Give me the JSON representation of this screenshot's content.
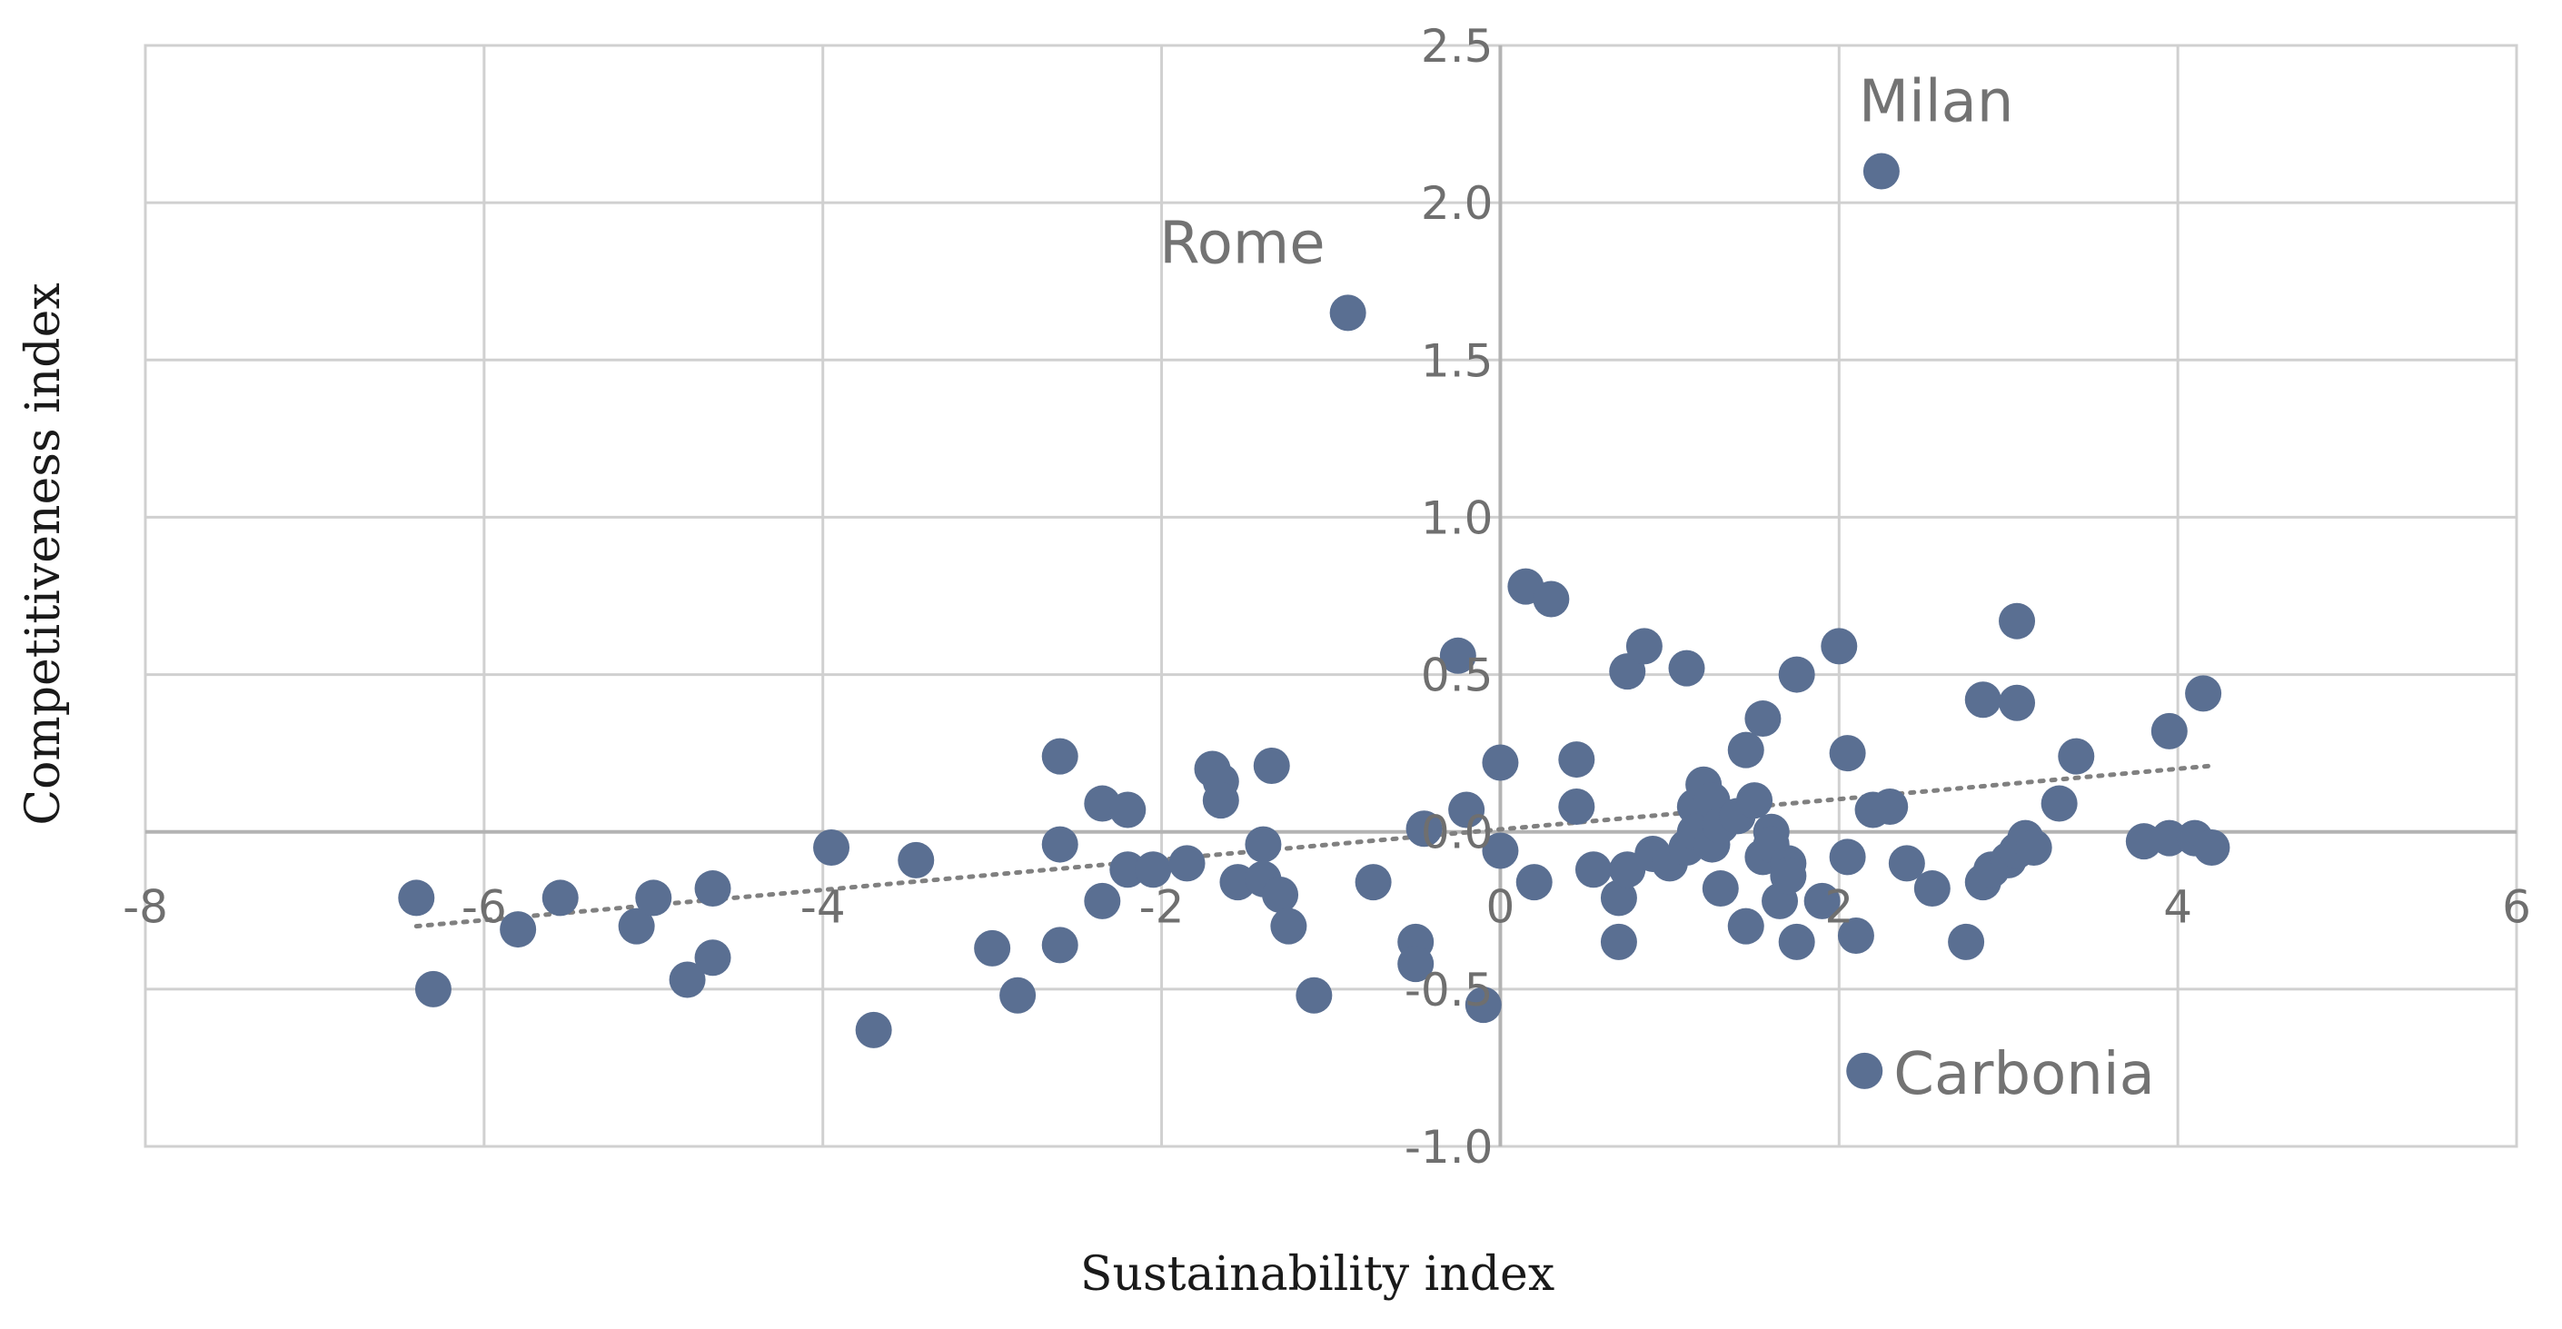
{
  "chart_data": {
    "type": "scatter",
    "xlabel": "Sustainability index",
    "ylabel": "Competitiveness index",
    "xlim": [
      -8,
      6
    ],
    "ylim": [
      -1.0,
      2.5
    ],
    "x_ticks": [
      -8,
      -6,
      -4,
      -2,
      0,
      2,
      4,
      6
    ],
    "x_tick_labels": [
      "-8",
      "-6",
      "-4",
      "-2",
      "0",
      "2",
      "4",
      "6"
    ],
    "y_ticks": [
      -1.0,
      -0.5,
      0.0,
      0.5,
      1.0,
      1.5,
      2.0,
      2.5
    ],
    "y_tick_labels": [
      "-1.0",
      "-0.5",
      "0.0",
      "0.5",
      "1.0",
      "1.5",
      "2.0",
      "2.5"
    ],
    "grid": true,
    "marker_color": "#5a6f92",
    "trendline": {
      "style": "dotted",
      "color": "#808080",
      "x": [
        -6.4,
        4.2
      ],
      "y": [
        -0.3,
        0.21
      ]
    },
    "annotations": [
      {
        "label": "Milan",
        "x": 2.25,
        "y": 2.1
      },
      {
        "label": "Rome",
        "x": -0.9,
        "y": 1.65
      },
      {
        "label": "Carbonia",
        "x": 2.15,
        "y": -0.76
      }
    ],
    "points": [
      [
        2.25,
        2.1
      ],
      [
        -0.9,
        1.65
      ],
      [
        2.15,
        -0.76
      ],
      [
        -6.4,
        -0.21
      ],
      [
        -6.3,
        -0.5
      ],
      [
        -5.8,
        -0.31
      ],
      [
        -5.55,
        -0.21
      ],
      [
        -5.1,
        -0.3
      ],
      [
        -5.0,
        -0.21
      ],
      [
        -4.8,
        -0.47
      ],
      [
        -4.65,
        -0.4
      ],
      [
        -4.65,
        -0.18
      ],
      [
        -3.95,
        -0.05
      ],
      [
        -3.7,
        -0.63
      ],
      [
        -3.45,
        -0.09
      ],
      [
        -3.0,
        -0.37
      ],
      [
        -2.85,
        -0.52
      ],
      [
        -2.6,
        -0.36
      ],
      [
        -2.6,
        -0.04
      ],
      [
        -2.6,
        0.24
      ],
      [
        -2.35,
        -0.22
      ],
      [
        -2.35,
        0.09
      ],
      [
        -2.2,
        0.07
      ],
      [
        -2.2,
        -0.12
      ],
      [
        -2.05,
        -0.12
      ],
      [
        -1.85,
        -0.1
      ],
      [
        -1.7,
        0.2
      ],
      [
        -1.65,
        0.16
      ],
      [
        -1.65,
        0.1
      ],
      [
        -1.55,
        -0.16
      ],
      [
        -1.4,
        -0.04
      ],
      [
        -1.4,
        -0.15
      ],
      [
        -1.35,
        0.21
      ],
      [
        -1.3,
        -0.2
      ],
      [
        -1.25,
        -0.3
      ],
      [
        -1.1,
        -0.52
      ],
      [
        -0.75,
        -0.16
      ],
      [
        -0.5,
        -0.35
      ],
      [
        -0.5,
        -0.42
      ],
      [
        -0.45,
        0.01
      ],
      [
        -0.2,
        0.07
      ],
      [
        -0.25,
        0.56
      ],
      [
        -0.1,
        -0.55
      ],
      [
        0.0,
        0.22
      ],
      [
        0.0,
        -0.06
      ],
      [
        0.15,
        0.78
      ],
      [
        0.3,
        0.74
      ],
      [
        0.2,
        -0.16
      ],
      [
        0.45,
        0.23
      ],
      [
        0.45,
        0.08
      ],
      [
        0.55,
        -0.12
      ],
      [
        0.7,
        -0.35
      ],
      [
        0.7,
        -0.21
      ],
      [
        0.75,
        -0.12
      ],
      [
        0.75,
        0.51
      ],
      [
        0.85,
        0.59
      ],
      [
        0.9,
        -0.07
      ],
      [
        1.0,
        -0.1
      ],
      [
        1.1,
        -0.05
      ],
      [
        1.1,
        0.52
      ],
      [
        1.15,
        0.08
      ],
      [
        1.15,
        0.0
      ],
      [
        1.2,
        0.15
      ],
      [
        1.25,
        0.1
      ],
      [
        1.25,
        -0.04
      ],
      [
        1.3,
        0.02
      ],
      [
        1.3,
        -0.18
      ],
      [
        1.4,
        0.05
      ],
      [
        1.45,
        0.26
      ],
      [
        1.45,
        -0.3
      ],
      [
        1.5,
        0.1
      ],
      [
        1.55,
        0.36
      ],
      [
        1.55,
        -0.08
      ],
      [
        1.6,
        0.0
      ],
      [
        1.6,
        -0.04
      ],
      [
        1.65,
        -0.22
      ],
      [
        1.7,
        -0.1
      ],
      [
        1.7,
        -0.14
      ],
      [
        1.75,
        0.5
      ],
      [
        1.75,
        -0.35
      ],
      [
        1.9,
        -0.22
      ],
      [
        2.0,
        0.59
      ],
      [
        2.05,
        0.25
      ],
      [
        2.05,
        -0.08
      ],
      [
        2.1,
        -0.33
      ],
      [
        2.2,
        0.07
      ],
      [
        2.3,
        0.08
      ],
      [
        2.4,
        -0.1
      ],
      [
        2.55,
        -0.18
      ],
      [
        2.75,
        -0.35
      ],
      [
        2.85,
        0.42
      ],
      [
        2.85,
        -0.16
      ],
      [
        2.9,
        -0.12
      ],
      [
        3.0,
        -0.09
      ],
      [
        3.05,
        0.41
      ],
      [
        3.05,
        0.67
      ],
      [
        3.05,
        -0.06
      ],
      [
        3.1,
        -0.02
      ],
      [
        3.15,
        -0.05
      ],
      [
        3.3,
        0.09
      ],
      [
        3.4,
        0.24
      ],
      [
        3.8,
        -0.03
      ],
      [
        3.95,
        0.32
      ],
      [
        3.95,
        -0.02
      ],
      [
        4.1,
        -0.02
      ],
      [
        4.15,
        0.44
      ],
      [
        4.2,
        -0.05
      ]
    ]
  }
}
